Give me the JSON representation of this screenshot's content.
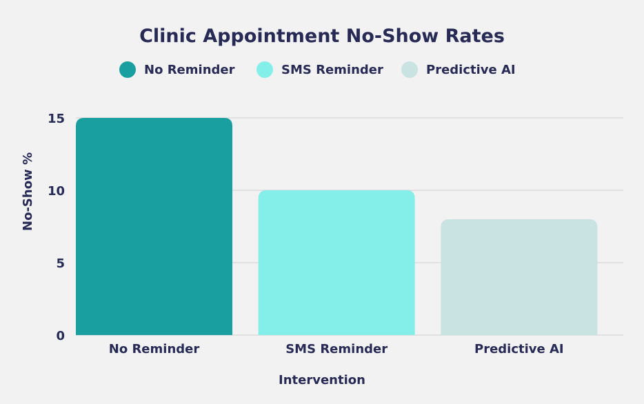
{
  "chart_data": {
    "type": "bar",
    "title": "Clinic Appointment No-Show Rates",
    "xlabel": "Intervention",
    "ylabel": "No-Show %",
    "categories": [
      "No Reminder",
      "SMS Reminder",
      "Predictive AI"
    ],
    "values": [
      15,
      10,
      8
    ],
    "colors": [
      "#1a9fa0",
      "#84efe9",
      "#c9e3e3"
    ],
    "legend": [
      "No Reminder",
      "SMS Reminder",
      "Predictive AI"
    ],
    "legend_position": "top",
    "yticks": [
      0,
      5,
      10,
      15
    ],
    "ylim": [
      0,
      15
    ],
    "grid": true
  }
}
